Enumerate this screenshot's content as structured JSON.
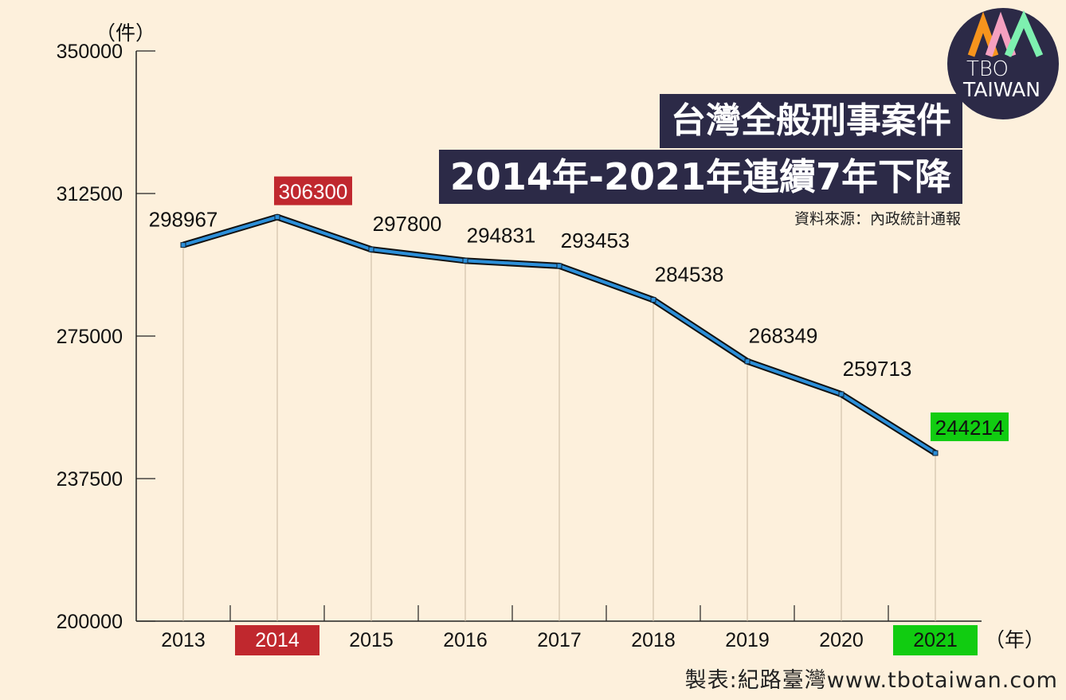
{
  "chart_data": {
    "type": "line",
    "title": "台灣全般刑事案件",
    "subtitle": "2014年-2021年連續7年下降",
    "source": "資料來源：內政統計通報",
    "credit": "製表:紀路臺灣www.tbotaiwan.com",
    "ylabel": "（件）",
    "xlabel": "（年）",
    "ylim": [
      200000,
      350000
    ],
    "yticks": [
      "200000",
      "237500",
      "275000",
      "312500",
      "350000"
    ],
    "x": [
      "2013",
      "2014",
      "2015",
      "2016",
      "2017",
      "2018",
      "2019",
      "2020",
      "2021"
    ],
    "values": [
      298967,
      306300,
      297800,
      294831,
      293453,
      284538,
      268349,
      259713,
      244214
    ],
    "highlight": {
      "2014": "#c0282e",
      "2021": "#11cc11"
    },
    "line_color": "#2b8fd9"
  },
  "logo": {
    "line1": "TBO",
    "line2": "TAIWAN"
  }
}
